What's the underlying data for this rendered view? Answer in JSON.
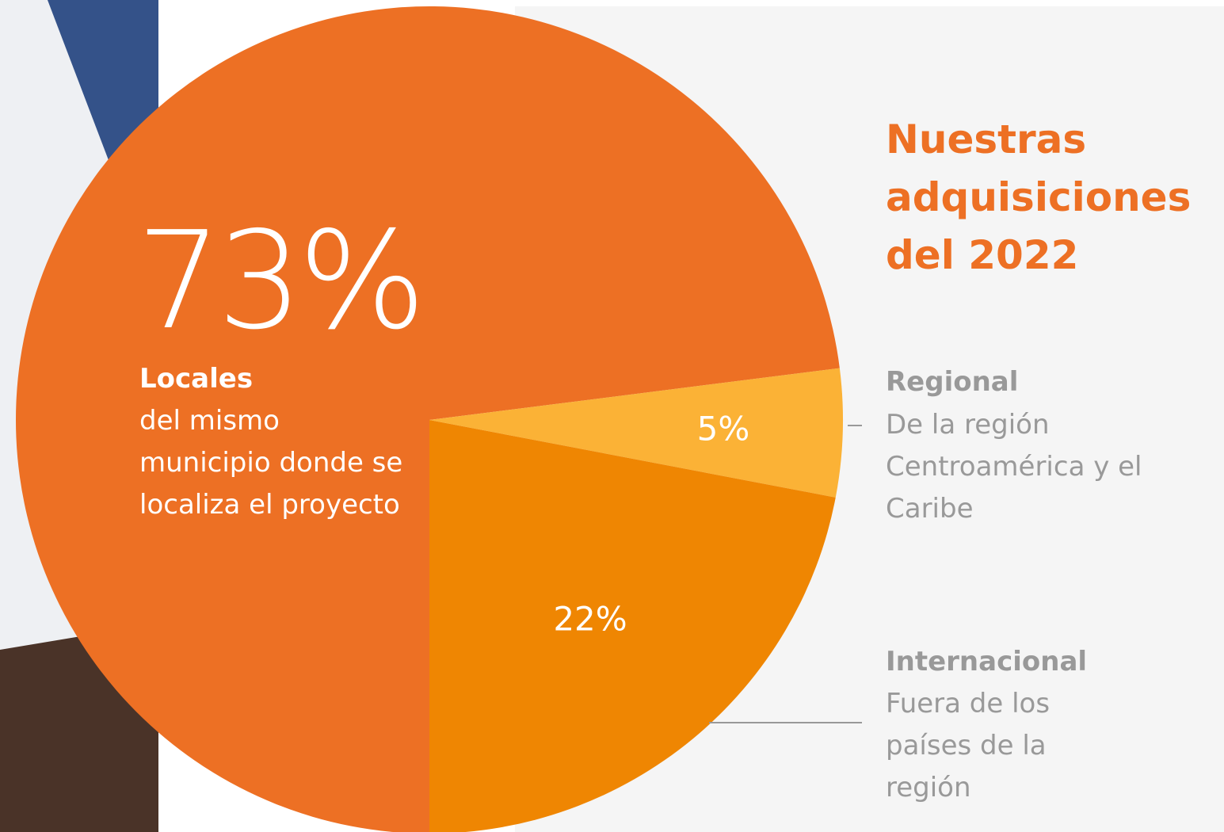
{
  "chart_data": {
    "type": "pie",
    "title": "Nuestras adquisiciones del 2022",
    "categories": [
      "Locales",
      "Regional",
      "Internacional"
    ],
    "descriptions": [
      "del mismo municipio donde se localiza el proyecto",
      "De la región Centroamérica y el Caribe",
      "Fuera de los países de la región"
    ],
    "values": [
      73,
      5,
      22
    ],
    "value_labels": [
      "73%",
      "5%",
      "22%"
    ],
    "colors": [
      "#ed7024",
      "#fbb236",
      "#ef8602"
    ]
  }
}
